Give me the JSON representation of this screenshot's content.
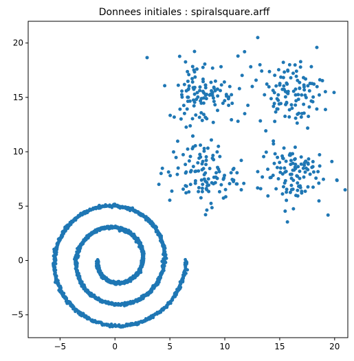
{
  "chart_data": {
    "type": "scatter",
    "title": "Donnees initiales : spiralsquare.arff",
    "xlabel": "",
    "ylabel": "",
    "xlim": [
      -7.9,
      21.2
    ],
    "ylim": [
      -7.1,
      22.0
    ],
    "xticks": [
      -5,
      0,
      5,
      10,
      15,
      20
    ],
    "yticks": [
      -5,
      0,
      5,
      10,
      15,
      20
    ],
    "grid": false,
    "legend": "none",
    "series": [
      {
        "color": "#1f77b4",
        "description_shape": "spiral and four gaussian clusters",
        "spiral": {
          "center": [
            0.0,
            0.0
          ],
          "inner_start": [
            -1.6,
            0.0
          ],
          "outer_end": [
            6.5,
            0.0
          ],
          "arms": [
            {
              "start": [
                -1.6,
                0.0
              ],
              "radii_turns": [
                1.6,
                2.4,
                4.0,
                5.6,
                6.5
              ]
            }
          ]
        },
        "clusters": [
          {
            "center": [
              8.0,
              15.5
            ],
            "spread": 1.5
          },
          {
            "center": [
              16.0,
              15.5
            ],
            "spread": 1.5
          },
          {
            "center": [
              8.0,
              8.0
            ],
            "spread": 1.5
          },
          {
            "center": [
              16.0,
              8.0
            ],
            "spread": 1.5
          }
        ],
        "outliers": [
          [
            13.0,
            20.5
          ],
          [
            11.8,
            19.2
          ],
          [
            11.2,
            18.8
          ],
          [
            13.2,
            18.0
          ],
          [
            11.2,
            12.8
          ],
          [
            11.5,
            9.2
          ],
          [
            11.5,
            6.5
          ],
          [
            4.2,
            8.0
          ],
          [
            4.0,
            7.0
          ],
          [
            12.5,
            16.0
          ],
          [
            20.2,
            7.4
          ]
        ]
      }
    ]
  }
}
